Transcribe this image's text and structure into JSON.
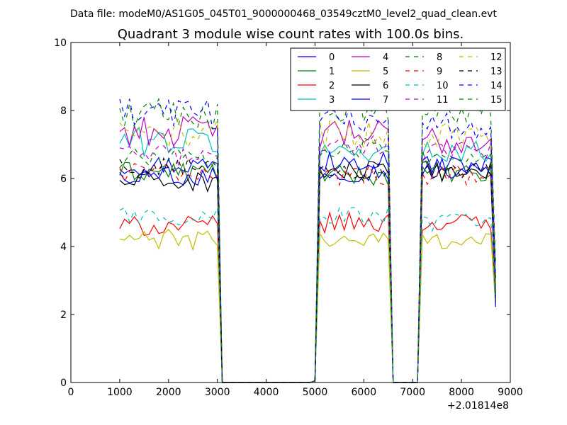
{
  "suptitle": "Data file: modeM0/AS1G05_045T01_9000000468_03549cztM0_level2_quad_clean.evt",
  "chart_data": {
    "type": "line",
    "title": "Quadrant 3 module wise count rates with 100.0s bins.",
    "xlabel": "",
    "ylabel": "",
    "x_offset_label": "+2.01814e8",
    "xlim": [
      0,
      9000
    ],
    "ylim": [
      0,
      10
    ],
    "xticks": [
      "0",
      "1000",
      "2000",
      "3000",
      "4000",
      "5000",
      "6000",
      "7000",
      "8000",
      "9000"
    ],
    "yticks": [
      "0",
      "2",
      "4",
      "6",
      "8",
      "10"
    ],
    "grid": false,
    "legend_position": "top-right",
    "legend_columns": 4,
    "segments": [
      {
        "start": 1000,
        "end": 3000
      },
      {
        "start": 5100,
        "end": 6500
      },
      {
        "start": 7150,
        "end": 8650
      }
    ],
    "series": [
      {
        "name": "0",
        "color": "#0000ff",
        "dashed": false,
        "levels": [
          6.4,
          6.2,
          6.4
        ]
      },
      {
        "name": "1",
        "color": "#008000",
        "dashed": false,
        "levels": [
          6.2,
          6.1,
          6.1
        ]
      },
      {
        "name": "2",
        "color": "#ff0000",
        "dashed": false,
        "levels": [
          4.6,
          4.7,
          4.7
        ]
      },
      {
        "name": "3",
        "color": "#00bfbf",
        "dashed": false,
        "levels": [
          7.1,
          6.8,
          6.8
        ]
      },
      {
        "name": "4",
        "color": "#bf00bf",
        "dashed": false,
        "levels": [
          7.4,
          7.3,
          7.1
        ]
      },
      {
        "name": "5",
        "color": "#bfbf00",
        "dashed": false,
        "levels": [
          4.2,
          4.2,
          4.2
        ]
      },
      {
        "name": "6",
        "color": "#000000",
        "dashed": false,
        "levels": [
          5.9,
          6.2,
          6.2
        ]
      },
      {
        "name": "7",
        "color": "#0000ff",
        "dashed": false,
        "levels": [
          6.1,
          6.5,
          6.3
        ]
      },
      {
        "name": "8",
        "color": "#008000",
        "dashed": true,
        "levels": [
          7.9,
          8.0,
          8.0
        ]
      },
      {
        "name": "9",
        "color": "#ff0000",
        "dashed": true,
        "levels": [
          6.2,
          6.1,
          6.1
        ]
      },
      {
        "name": "10",
        "color": "#00bfbf",
        "dashed": true,
        "levels": [
          4.9,
          4.9,
          4.7
        ]
      },
      {
        "name": "11",
        "color": "#bf00bf",
        "dashed": true,
        "levels": [
          6.7,
          7.0,
          6.8
        ]
      },
      {
        "name": "12",
        "color": "#bfbf00",
        "dashed": true,
        "levels": [
          7.3,
          7.3,
          7.3
        ]
      },
      {
        "name": "13",
        "color": "#000000",
        "dashed": true,
        "levels": [
          6.3,
          6.2,
          6.2
        ]
      },
      {
        "name": "14",
        "color": "#0000ff",
        "dashed": true,
        "levels": [
          7.9,
          7.8,
          7.5
        ]
      },
      {
        "name": "15",
        "color": "#008000",
        "dashed": true,
        "levels": [
          6.6,
          6.9,
          6.6
        ]
      }
    ]
  }
}
